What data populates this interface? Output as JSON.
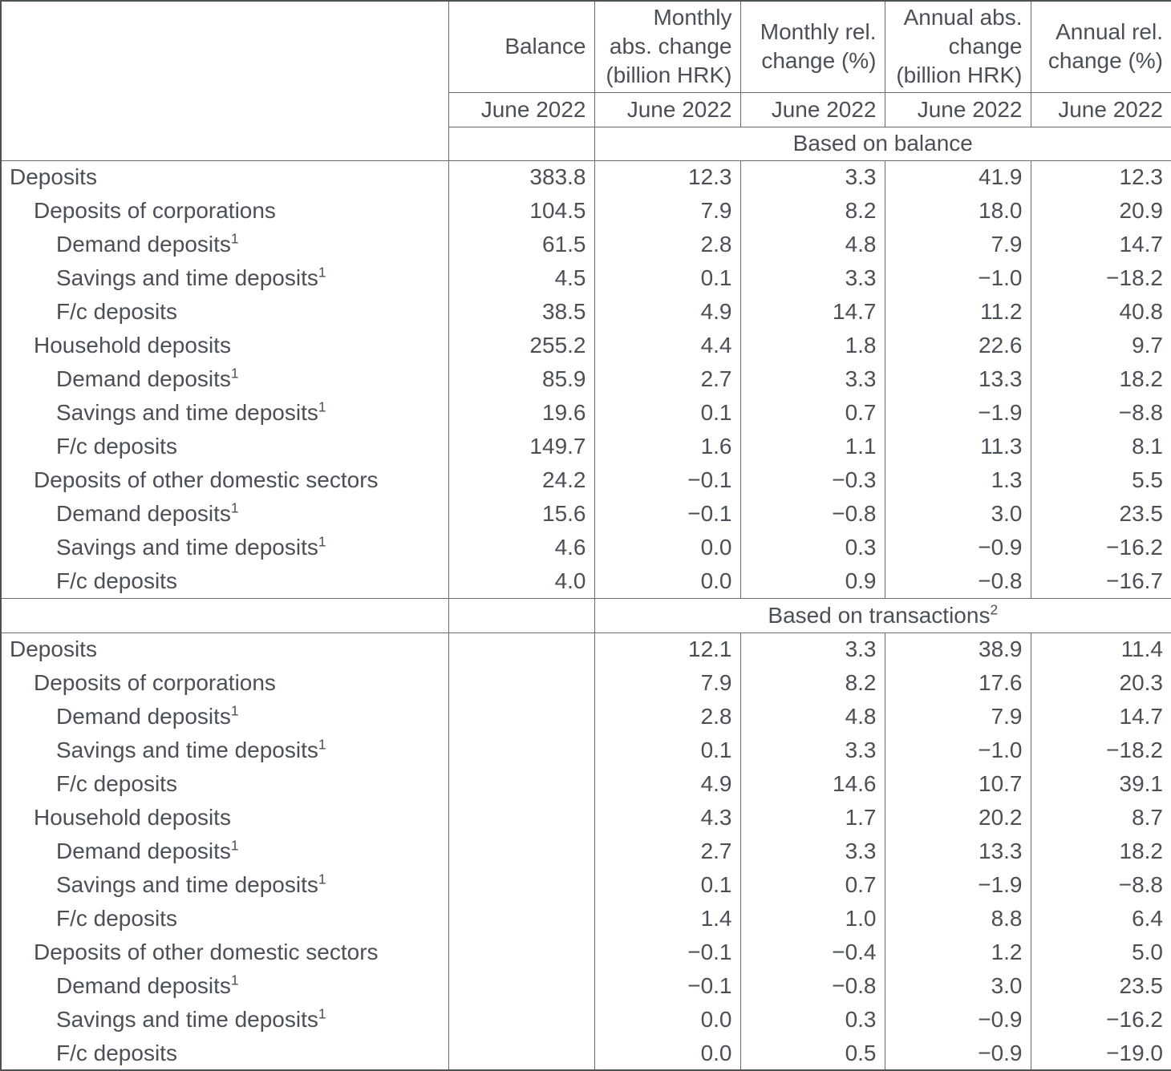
{
  "header": {
    "corner": "",
    "columns": [
      {
        "lines": [
          "Balance"
        ],
        "period": "June 2022"
      },
      {
        "lines": [
          "Monthly",
          "abs. change",
          "(billion HRK)"
        ],
        "period": "June 2022"
      },
      {
        "lines": [
          "Monthly rel.",
          "change (%)"
        ],
        "period": "June 2022"
      },
      {
        "lines": [
          "Annual abs.",
          "change",
          "(billion HRK)"
        ],
        "period": "June 2022"
      },
      {
        "lines": [
          "Annual rel.",
          "change (%)"
        ],
        "period": "June 2022"
      }
    ]
  },
  "sections": [
    {
      "title": "Based on balance",
      "title_sup": "",
      "rows": [
        {
          "label": "Deposits",
          "sup": "",
          "indent": 0,
          "values": [
            "383.8",
            "12.3",
            "3.3",
            "41.9",
            "12.3"
          ]
        },
        {
          "label": "Deposits of corporations",
          "sup": "",
          "indent": 1,
          "values": [
            "104.5",
            "7.9",
            "8.2",
            "18.0",
            "20.9"
          ]
        },
        {
          "label": "Demand deposits",
          "sup": "1",
          "indent": 2,
          "values": [
            "61.5",
            "2.8",
            "4.8",
            "7.9",
            "14.7"
          ]
        },
        {
          "label": "Savings and time deposits",
          "sup": "1",
          "indent": 2,
          "values": [
            "4.5",
            "0.1",
            "3.3",
            "−1.0",
            "−18.2"
          ]
        },
        {
          "label": "F/c deposits",
          "sup": "",
          "indent": 2,
          "values": [
            "38.5",
            "4.9",
            "14.7",
            "11.2",
            "40.8"
          ]
        },
        {
          "label": "Household deposits",
          "sup": "",
          "indent": 1,
          "values": [
            "255.2",
            "4.4",
            "1.8",
            "22.6",
            "9.7"
          ]
        },
        {
          "label": "Demand deposits",
          "sup": "1",
          "indent": 2,
          "values": [
            "85.9",
            "2.7",
            "3.3",
            "13.3",
            "18.2"
          ]
        },
        {
          "label": "Savings and time deposits",
          "sup": "1",
          "indent": 2,
          "values": [
            "19.6",
            "0.1",
            "0.7",
            "−1.9",
            "−8.8"
          ]
        },
        {
          "label": "F/c deposits",
          "sup": "",
          "indent": 2,
          "values": [
            "149.7",
            "1.6",
            "1.1",
            "11.3",
            "8.1"
          ]
        },
        {
          "label": "Deposits of other domestic sectors",
          "sup": "",
          "indent": 1,
          "values": [
            "24.2",
            "−0.1",
            "−0.3",
            "1.3",
            "5.5"
          ]
        },
        {
          "label": "Demand deposits",
          "sup": "1",
          "indent": 2,
          "values": [
            "15.6",
            "−0.1",
            "−0.8",
            "3.0",
            "23.5"
          ]
        },
        {
          "label": "Savings and time deposits",
          "sup": "1",
          "indent": 2,
          "values": [
            "4.6",
            "0.0",
            "0.3",
            "−0.9",
            "−16.2"
          ]
        },
        {
          "label": "F/c deposits",
          "sup": "",
          "indent": 2,
          "values": [
            "4.0",
            "0.0",
            "0.9",
            "−0.8",
            "−16.7"
          ]
        }
      ]
    },
    {
      "title": "Based on transactions",
      "title_sup": "2",
      "rows": [
        {
          "label": "Deposits",
          "sup": "",
          "indent": 0,
          "values": [
            "",
            "12.1",
            "3.3",
            "38.9",
            "11.4"
          ]
        },
        {
          "label": "Deposits of corporations",
          "sup": "",
          "indent": 1,
          "values": [
            "",
            "7.9",
            "8.2",
            "17.6",
            "20.3"
          ]
        },
        {
          "label": "Demand deposits",
          "sup": "1",
          "indent": 2,
          "values": [
            "",
            "2.8",
            "4.8",
            "7.9",
            "14.7"
          ]
        },
        {
          "label": "Savings and time deposits",
          "sup": "1",
          "indent": 2,
          "values": [
            "",
            "0.1",
            "3.3",
            "−1.0",
            "−18.2"
          ]
        },
        {
          "label": "F/c deposits",
          "sup": "",
          "indent": 2,
          "values": [
            "",
            "4.9",
            "14.6",
            "10.7",
            "39.1"
          ]
        },
        {
          "label": "Household deposits",
          "sup": "",
          "indent": 1,
          "values": [
            "",
            "4.3",
            "1.7",
            "20.2",
            "8.7"
          ]
        },
        {
          "label": "Demand deposits",
          "sup": "1",
          "indent": 2,
          "values": [
            "",
            "2.7",
            "3.3",
            "13.3",
            "18.2"
          ]
        },
        {
          "label": "Savings and time deposits",
          "sup": "1",
          "indent": 2,
          "values": [
            "",
            "0.1",
            "0.7",
            "−1.9",
            "−8.8"
          ]
        },
        {
          "label": "F/c deposits",
          "sup": "",
          "indent": 2,
          "values": [
            "",
            "1.4",
            "1.0",
            "8.8",
            "6.4"
          ]
        },
        {
          "label": "Deposits of other domestic sectors",
          "sup": "",
          "indent": 1,
          "values": [
            "",
            "−0.1",
            "−0.4",
            "1.2",
            "5.0"
          ]
        },
        {
          "label": "Demand deposits",
          "sup": "1",
          "indent": 2,
          "values": [
            "",
            "−0.1",
            "−0.8",
            "3.0",
            "23.5"
          ]
        },
        {
          "label": "Savings and time deposits",
          "sup": "1",
          "indent": 2,
          "values": [
            "",
            "0.0",
            "0.3",
            "−0.9",
            "−16.2"
          ]
        },
        {
          "label": "F/c deposits",
          "sup": "",
          "indent": 2,
          "values": [
            "",
            "0.0",
            "0.5",
            "−0.9",
            "−19.0"
          ]
        }
      ]
    }
  ],
  "colors": {
    "text": "#4a5056",
    "grid": "#686d72",
    "outer_border": "#4c5156",
    "background": "#ffffff"
  }
}
